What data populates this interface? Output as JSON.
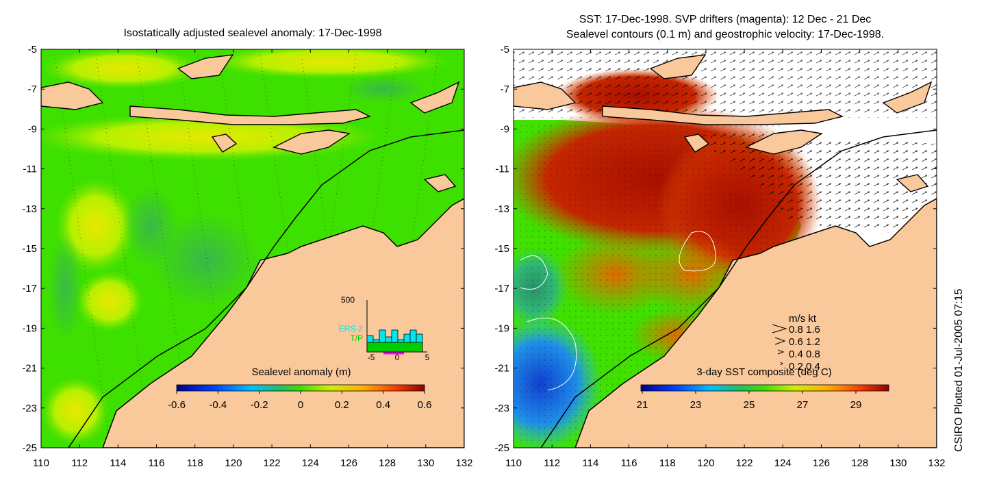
{
  "left_panel": {
    "title": "Isostatically adjusted sealevel anomaly: 17-Dec-1998",
    "colorbar_label": "Sealevel anomaly (m)",
    "colorbar_ticks": [
      "-0.6",
      "-0.4",
      "-0.2",
      "0",
      "0.2",
      "0.4",
      "0.6"
    ],
    "histogram": {
      "ymax_label": "500",
      "series": [
        {
          "name": "ERS-2",
          "color": "#00e5ee"
        },
        {
          "name": "T/P",
          "color": "#00cc00"
        }
      ],
      "x_ticks": [
        "-5",
        "0",
        "5"
      ]
    }
  },
  "right_panel": {
    "title_line1": "SST: 17-Dec-1998. SVP drifters (magenta): 12 Dec - 21 Dec",
    "title_line2": "Sealevel contours (0.1 m) and geostrophic velocity: 17-Dec-1998.",
    "colorbar_label": "3-day SST composite (deg C)",
    "colorbar_ticks": [
      "21",
      "23",
      "25",
      "27",
      "29"
    ],
    "velocity_legend": {
      "header": "m/s  kt",
      "rows": [
        "0.8  1.6",
        "0.6  1.2",
        "0.4  0.8",
        "0.2  0.4"
      ]
    }
  },
  "axes": {
    "y_ticks": [
      "-5",
      "-7",
      "-9",
      "-11",
      "-13",
      "-15",
      "-17",
      "-19",
      "-21",
      "-23",
      "-25"
    ],
    "x_ticks": [
      "110",
      "112",
      "114",
      "116",
      "118",
      "120",
      "122",
      "124",
      "126",
      "128",
      "130",
      "132"
    ]
  },
  "credit": "CSIRO Plotted 01-Jul-2005 07:15",
  "colors": {
    "land": "#f9c89b",
    "ocean_green": "#22dd00",
    "anomaly_yellow": "#c8f000",
    "sst_red": "#b01000"
  }
}
